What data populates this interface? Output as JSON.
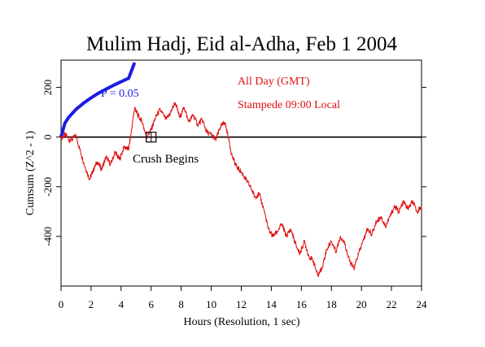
{
  "chart_data": {
    "type": "line",
    "title": "Mulim Hadj, Eid al-Adha, Feb 1 2004",
    "xlabel": "Hours (Resolution, 1 sec)",
    "ylabel": "Cumsum (Z^2 - 1)",
    "xlim": [
      0,
      24
    ],
    "ylim": [
      -600,
      310
    ],
    "x_ticks": [
      "0",
      "2",
      "4",
      "6",
      "8",
      "10",
      "12",
      "14",
      "16",
      "18",
      "20",
      "22",
      "24"
    ],
    "y_ticks": [
      "200",
      "0",
      "-200",
      "-400"
    ],
    "x_tick_values": [
      0,
      2,
      4,
      6,
      8,
      10,
      12,
      14,
      16,
      18,
      20,
      22,
      24
    ],
    "y_tick_values": [
      200,
      0,
      -200,
      -400
    ],
    "reference_line": {
      "y": 0,
      "color": "#000000"
    },
    "significance_curve": {
      "label": "P = 0.05",
      "color": "#1c1ce0",
      "x": [
        0,
        0.25,
        0.5,
        1,
        1.5,
        2,
        2.5,
        3,
        3.5,
        4,
        4.5,
        4.9
      ],
      "y": [
        0,
        55,
        79,
        112,
        137,
        158,
        177,
        193,
        209,
        223,
        237,
        300
      ]
    },
    "series": [
      {
        "color": "#e01010",
        "x": [
          0,
          0.3,
          0.6,
          1.0,
          1.3,
          1.6,
          1.9,
          2.1,
          2.4,
          2.7,
          3.0,
          3.3,
          3.6,
          3.9,
          4.2,
          4.5,
          4.7,
          4.9,
          5.1,
          5.4,
          5.7,
          6.0,
          6.3,
          6.6,
          7.0,
          7.3,
          7.6,
          7.9,
          8.2,
          8.5,
          8.8,
          9.1,
          9.4,
          9.7,
          10.0,
          10.3,
          10.6,
          10.9,
          11.1,
          11.4,
          11.7,
          12.0,
          12.3,
          12.6,
          12.9,
          13.2,
          13.5,
          13.8,
          14.1,
          14.4,
          14.7,
          15.0,
          15.3,
          15.6,
          15.9,
          16.2,
          16.5,
          16.8,
          17.1,
          17.4,
          17.7,
          18.0,
          18.3,
          18.6,
          18.9,
          19.2,
          19.5,
          19.8,
          20.1,
          20.4,
          20.7,
          21.0,
          21.3,
          21.6,
          21.9,
          22.2,
          22.5,
          22.8,
          23.1,
          23.4,
          23.7,
          24.0
        ],
        "y": [
          -5,
          10,
          -15,
          5,
          -60,
          -120,
          -170,
          -140,
          -100,
          -130,
          -80,
          -110,
          -60,
          -90,
          -40,
          -50,
          30,
          120,
          90,
          60,
          0,
          30,
          80,
          110,
          70,
          100,
          140,
          80,
          120,
          60,
          90,
          50,
          70,
          20,
          10,
          -10,
          40,
          60,
          10,
          -80,
          -120,
          -140,
          -170,
          -200,
          -240,
          -230,
          -290,
          -370,
          -400,
          -380,
          -350,
          -400,
          -370,
          -430,
          -470,
          -420,
          -480,
          -500,
          -560,
          -520,
          -450,
          -420,
          -460,
          -400,
          -430,
          -500,
          -530,
          -470,
          -420,
          -370,
          -390,
          -340,
          -320,
          -360,
          -320,
          -280,
          -300,
          -260,
          -290,
          -260,
          -300,
          -280
        ]
      }
    ],
    "annotations": [
      {
        "text": "All Day (GMT)",
        "color": "#e01010"
      },
      {
        "text": "Stampede 09:00 Local",
        "color": "#e01010"
      },
      {
        "text": "Crush Begins",
        "color": "#000000",
        "x": 6.0,
        "y": 0
      }
    ]
  }
}
